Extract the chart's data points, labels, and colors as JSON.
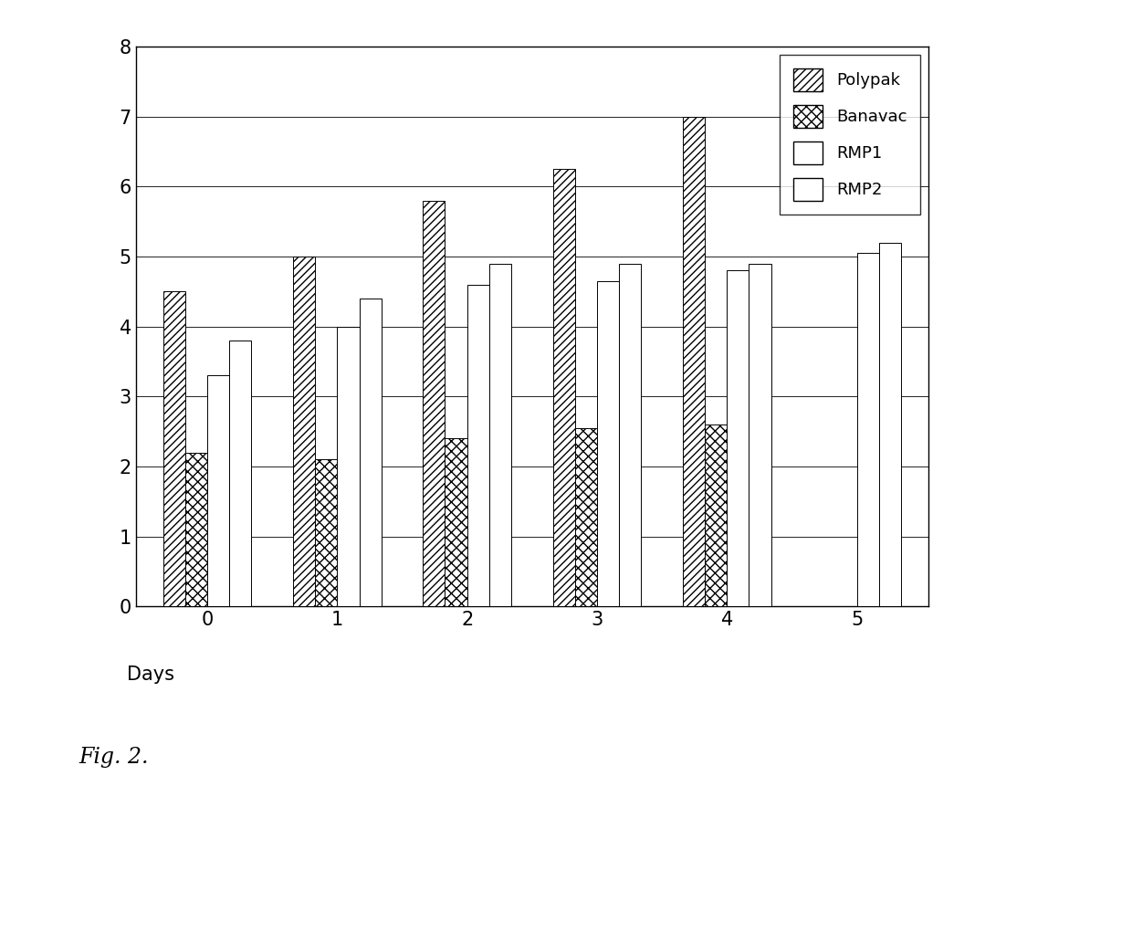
{
  "categories": [
    "0",
    "1",
    "2",
    "3",
    "4",
    "5"
  ],
  "xlabel": "Days",
  "ylim": [
    0,
    8
  ],
  "yticks": [
    0,
    1,
    2,
    3,
    4,
    5,
    6,
    7,
    8
  ],
  "series": {
    "Polypak": [
      4.5,
      5.0,
      5.8,
      6.25,
      7.0,
      0.0
    ],
    "Banavac": [
      2.2,
      2.1,
      2.4,
      2.55,
      2.6,
      0.0
    ],
    "RMP1": [
      3.3,
      4.0,
      4.6,
      4.65,
      4.8,
      5.05
    ],
    "RMP2": [
      3.8,
      4.4,
      4.9,
      4.9,
      4.9,
      5.2
    ]
  },
  "legend_labels": [
    "Polypak",
    "Banavac",
    "RMP1",
    "RMP2"
  ],
  "background_color": "#ffffff",
  "fig_width": 12.4,
  "fig_height": 10.22,
  "dpi": 100
}
